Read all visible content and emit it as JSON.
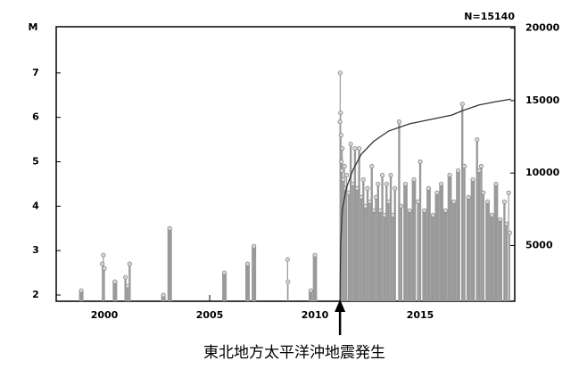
{
  "chart_data": {
    "type": "scatter",
    "ylabel": "M",
    "annotation": "N=15140",
    "arrow_label": "東北地方太平洋沖地震発生",
    "arrow_x": 2011.19,
    "xlim": [
      1997.71,
      2019.49
    ],
    "xticks": [
      2000,
      2005,
      2010,
      2015
    ],
    "ylim": [
      1.86,
      8.04
    ],
    "yticks": [
      2,
      3,
      4,
      5,
      6,
      7
    ],
    "y2lim": [
      1150,
      20100
    ],
    "y2ticks": [
      5000,
      10000,
      15000,
      20000
    ],
    "series": [
      {
        "type": "stem",
        "color": "#9a9a9a",
        "x": [
          1998.9,
          1999.9,
          1999.95,
          2000.0,
          2000.5,
          2001.0,
          2001.1,
          2001.2,
          2002.8,
          2003.1,
          2005.7,
          2006.8,
          2007.1,
          2008.7,
          2008.72,
          2009.8,
          2010.0,
          2011.19,
          2011.2,
          2011.22,
          2011.24,
          2011.26,
          2011.28,
          2011.3,
          2011.35,
          2011.4,
          2011.45,
          2011.5,
          2011.6,
          2011.7,
          2011.8,
          2011.9,
          2012.0,
          2012.1,
          2012.2,
          2012.3,
          2012.4,
          2012.5,
          2012.6,
          2012.7,
          2012.8,
          2012.9,
          2013.0,
          2013.1,
          2013.2,
          2013.3,
          2013.4,
          2013.5,
          2013.6,
          2013.7,
          2013.8,
          2014.0,
          2014.1,
          2014.3,
          2014.5,
          2014.7,
          2014.9,
          2015.0,
          2015.2,
          2015.4,
          2015.6,
          2015.8,
          2016.0,
          2016.2,
          2016.4,
          2016.6,
          2016.8,
          2017.0,
          2017.1,
          2017.3,
          2017.5,
          2017.7,
          2017.8,
          2017.9,
          2018.0,
          2018.2,
          2018.4,
          2018.6,
          2018.8,
          2019.0,
          2019.1,
          2019.2,
          2019.25
        ],
        "values": [
          2.1,
          2.7,
          2.9,
          2.6,
          2.3,
          2.4,
          2.2,
          2.7,
          2.0,
          3.5,
          2.5,
          2.7,
          3.1,
          2.8,
          2.3,
          2.1,
          2.9,
          5.9,
          7.0,
          6.1,
          5.6,
          5.0,
          4.8,
          5.3,
          4.6,
          4.9,
          4.4,
          4.7,
          4.3,
          5.4,
          4.5,
          5.3,
          4.4,
          5.3,
          4.2,
          4.6,
          4.0,
          4.4,
          4.1,
          4.9,
          3.9,
          4.2,
          4.5,
          3.9,
          4.7,
          3.8,
          4.5,
          4.1,
          4.7,
          3.8,
          4.4,
          5.9,
          4.0,
          4.5,
          3.9,
          4.6,
          4.1,
          5.0,
          3.9,
          4.4,
          3.8,
          4.3,
          4.5,
          3.9,
          4.7,
          4.1,
          4.8,
          6.3,
          4.9,
          4.2,
          4.6,
          5.5,
          4.8,
          4.9,
          4.3,
          4.1,
          3.8,
          4.5,
          3.7,
          4.1,
          3.6,
          4.3,
          3.4
        ]
      },
      {
        "type": "line",
        "color": "#333333",
        "axis": "y2",
        "x": [
          2011.19,
          2011.22,
          2011.3,
          2011.5,
          2011.8,
          2012.2,
          2012.8,
          2013.5,
          2014.5,
          2015.5,
          2016.5,
          2017.0,
          2017.8,
          2018.5,
          2019.3
        ],
        "values": [
          1200,
          5000,
          7500,
          9000,
          10200,
          11300,
          12200,
          12900,
          13400,
          13700,
          14000,
          14300,
          14700,
          14900,
          15100
        ]
      }
    ]
  }
}
